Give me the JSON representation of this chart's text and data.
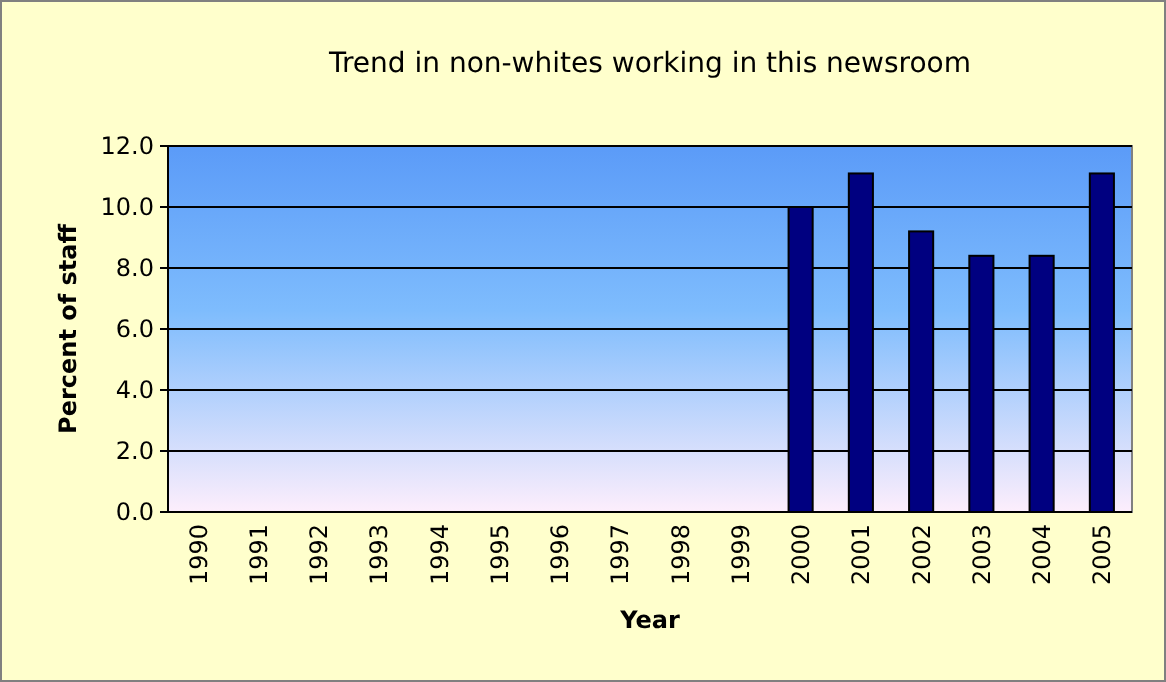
{
  "chart_data": {
    "type": "bar",
    "title": "Trend in non-whites working in this newsroom",
    "xlabel": "Year",
    "ylabel": "Percent of staff",
    "categories": [
      "1990",
      "1991",
      "1992",
      "1993",
      "1994",
      "1995",
      "1996",
      "1997",
      "1998",
      "1999",
      "2000",
      "2001",
      "2002",
      "2003",
      "2004",
      "2005"
    ],
    "values": [
      null,
      null,
      null,
      null,
      null,
      null,
      null,
      null,
      null,
      null,
      10.0,
      11.1,
      9.2,
      8.4,
      8.4,
      11.1
    ],
    "color": "#000080",
    "ylim": [
      0,
      12
    ],
    "yticks": [
      {
        "value": 0,
        "label": "0.0"
      },
      {
        "value": 2,
        "label": "2.0"
      },
      {
        "value": 4,
        "label": "4.0"
      },
      {
        "value": 6,
        "label": "6.0"
      },
      {
        "value": 8,
        "label": "8.0"
      },
      {
        "value": 10,
        "label": "10.0"
      },
      {
        "value": 12,
        "label": "12.0"
      }
    ],
    "grid": "y"
  }
}
